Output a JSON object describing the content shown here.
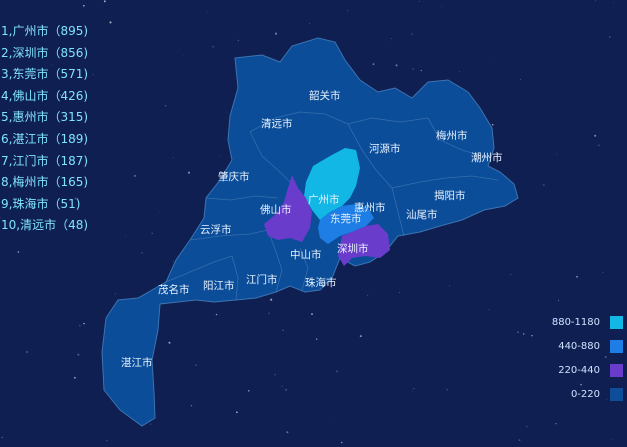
{
  "ranking": [
    "1,广州市（895)",
    "2,深圳市（856)",
    "3,东莞市（571)",
    "4,佛山市（426)",
    "5,惠州市（315)",
    "6,湛江市（189)",
    "7,江门市（187)",
    "8,梅州市（165)",
    "9,珠海市（51)",
    "10,清远市（48)"
  ],
  "cities": [
    {
      "name": "韶关市",
      "value": null
    },
    {
      "name": "清远市",
      "value": 48
    },
    {
      "name": "河源市",
      "value": null
    },
    {
      "name": "梅州市",
      "value": 165
    },
    {
      "name": "潮州市",
      "value": null
    },
    {
      "name": "肇庆市",
      "value": null
    },
    {
      "name": "广州市",
      "value": 895
    },
    {
      "name": "惠州市",
      "value": 315
    },
    {
      "name": "揭阳市",
      "value": null
    },
    {
      "name": "佛山市",
      "value": 426
    },
    {
      "name": "东莞市",
      "value": 571
    },
    {
      "name": "汕尾市",
      "value": null
    },
    {
      "name": "云浮市",
      "value": null
    },
    {
      "name": "深圳市",
      "value": 856
    },
    {
      "name": "中山市",
      "value": null
    },
    {
      "name": "茂名市",
      "value": null
    },
    {
      "name": "阳江市",
      "value": null
    },
    {
      "name": "江门市",
      "value": 187
    },
    {
      "name": "珠海市",
      "value": 51
    },
    {
      "name": "湛江市",
      "value": 189
    }
  ],
  "legend": [
    {
      "label": "880-1180",
      "color": "#12b7e6"
    },
    {
      "label": "440-880",
      "color": "#1e7ee6"
    },
    {
      "label": "220-440",
      "color": "#6a3ccc"
    },
    {
      "label": "0-220",
      "color": "#0d4d9a"
    }
  ],
  "colors": {
    "background": "#0f1f52",
    "base_region": "#0b4d98",
    "region_border": "#3c74b3",
    "ranking_text": "#7fe3ff"
  }
}
